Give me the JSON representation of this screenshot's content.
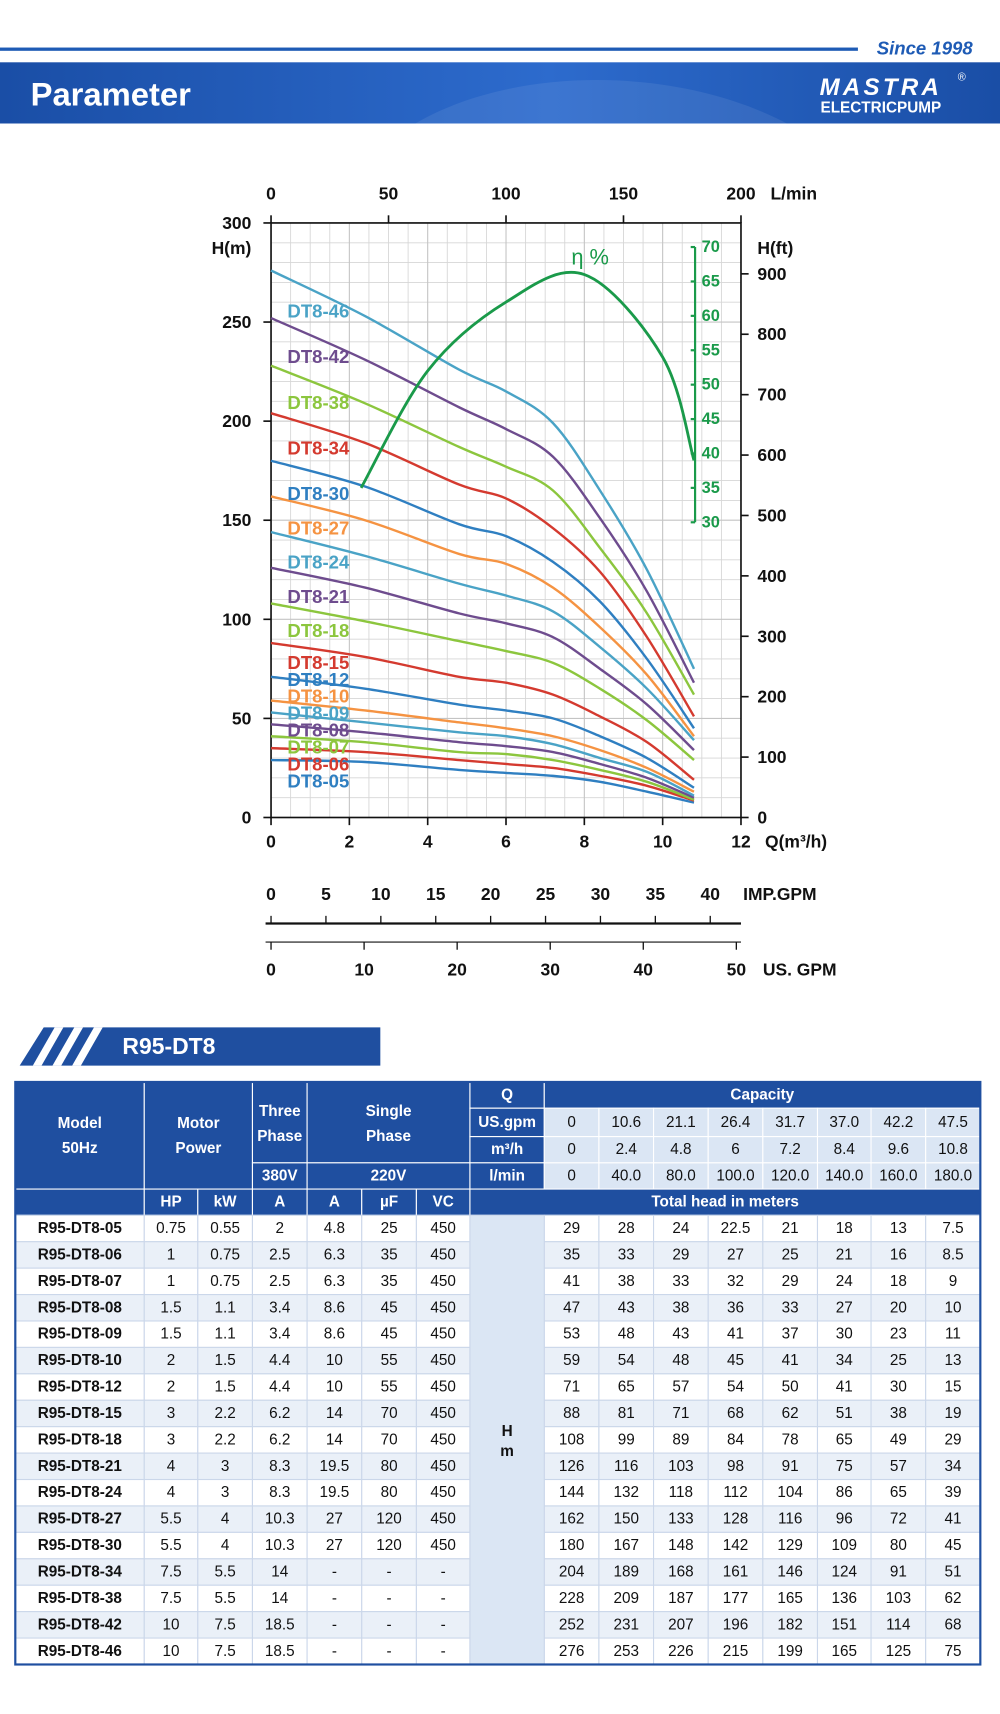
{
  "header": {
    "since": "Since 1998",
    "title": "Parameter",
    "logo": "MASTRA",
    "logo_sub": "ELECTRICPUMP",
    "reg": "®"
  },
  "chart_data": {
    "type": "line",
    "x_label": "Q(m³/h)",
    "y_label": "H(m)",
    "x": [
      0,
      2.4,
      4.8,
      6,
      7.2,
      8.4,
      9.6,
      10.8
    ],
    "xlim": [
      0,
      12
    ],
    "xticks": [
      0,
      2,
      4,
      6,
      8,
      10,
      12
    ],
    "ylim": [
      0,
      300
    ],
    "yticks": [
      0,
      50,
      100,
      150,
      200,
      250,
      300
    ],
    "grid": true,
    "series": [
      {
        "name": "DT8-05",
        "color": "#2f7fc1",
        "values": [
          29,
          28,
          24,
          22.5,
          21,
          18,
          13,
          7.5
        ]
      },
      {
        "name": "DT8-06",
        "color": "#d43a2f",
        "values": [
          35,
          33,
          29,
          27,
          25,
          21,
          16,
          8.5
        ]
      },
      {
        "name": "DT8-07",
        "color": "#8cc63e",
        "values": [
          41,
          38,
          33,
          32,
          29,
          24,
          18,
          9
        ]
      },
      {
        "name": "DT8-08",
        "color": "#6e4c8e",
        "values": [
          47,
          43,
          38,
          36,
          33,
          27,
          20,
          10
        ]
      },
      {
        "name": "DT8-09",
        "color": "#4aa3c6",
        "values": [
          53,
          48,
          43,
          41,
          37,
          30,
          23,
          11
        ]
      },
      {
        "name": "DT8-10",
        "color": "#f59342",
        "values": [
          59,
          54,
          48,
          45,
          41,
          34,
          25,
          13
        ]
      },
      {
        "name": "DT8-12",
        "color": "#2f7fc1",
        "values": [
          71,
          65,
          57,
          54,
          50,
          41,
          30,
          15
        ]
      },
      {
        "name": "DT8-15",
        "color": "#d43a2f",
        "values": [
          88,
          81,
          71,
          68,
          62,
          51,
          38,
          19
        ]
      },
      {
        "name": "DT8-18",
        "color": "#8cc63e",
        "values": [
          108,
          99,
          89,
          84,
          78,
          65,
          49,
          29
        ]
      },
      {
        "name": "DT8-21",
        "color": "#6e4c8e",
        "values": [
          126,
          116,
          103,
          98,
          91,
          75,
          57,
          34
        ]
      },
      {
        "name": "DT8-24",
        "color": "#4aa3c6",
        "values": [
          144,
          132,
          118,
          112,
          104,
          86,
          65,
          39
        ]
      },
      {
        "name": "DT8-27",
        "color": "#f59342",
        "values": [
          162,
          150,
          133,
          128,
          116,
          96,
          72,
          41
        ]
      },
      {
        "name": "DT8-30",
        "color": "#2f7fc1",
        "values": [
          180,
          167,
          148,
          142,
          129,
          109,
          80,
          45
        ]
      },
      {
        "name": "DT8-34",
        "color": "#d43a2f",
        "values": [
          204,
          189,
          168,
          161,
          146,
          124,
          91,
          51
        ]
      },
      {
        "name": "DT8-38",
        "color": "#8cc63e",
        "values": [
          228,
          209,
          187,
          177,
          165,
          136,
          103,
          62
        ]
      },
      {
        "name": "DT8-42",
        "color": "#6e4c8e",
        "values": [
          252,
          231,
          207,
          196,
          182,
          151,
          114,
          68
        ]
      },
      {
        "name": "DT8-46",
        "color": "#4aa3c6",
        "values": [
          276,
          253,
          226,
          215,
          199,
          165,
          125,
          75
        ]
      }
    ],
    "efficiency": {
      "name": "η %",
      "color": "#1a9a4a",
      "axis": "y2",
      "x": [
        2.3,
        4,
        6,
        8,
        10,
        10.8
      ],
      "values": [
        35,
        52,
        62,
        66,
        54,
        39
      ]
    },
    "y2lim": [
      -12.9,
      73.5
    ],
    "y2ticks": [
      30,
      35,
      40,
      45,
      50,
      55,
      60,
      65,
      70
    ],
    "top_axis": {
      "label": "L/min",
      "lim": [
        0,
        200
      ],
      "ticks": [
        0,
        50,
        100,
        150,
        200
      ]
    },
    "right_axis": {
      "label": "H(ft)",
      "lim": [
        0,
        984.25
      ],
      "ticks": [
        0,
        100,
        200,
        300,
        400,
        500,
        600,
        700,
        800,
        900
      ]
    },
    "imp_axis": {
      "label": "IMP.GPM",
      "lim": [
        0,
        42.8
      ],
      "ticks": [
        0,
        5,
        10,
        15,
        20,
        25,
        30,
        35,
        40
      ]
    },
    "us_axis": {
      "label": "US. GPM",
      "lim": [
        0,
        50.5
      ],
      "ticks": [
        0,
        10,
        20,
        30,
        40,
        50
      ]
    }
  },
  "table": {
    "title": "R95-DT8",
    "head": {
      "model": [
        "Model",
        "50Hz"
      ],
      "motor": [
        "Motor",
        "Power"
      ],
      "three": [
        "Three",
        "Phase"
      ],
      "v380": "380V",
      "single": [
        "Single",
        "Phase"
      ],
      "v220": "220V",
      "q": "Q",
      "capacity": "Capacity",
      "units": [
        "US.gpm",
        "m³/h",
        "l/min"
      ],
      "q_values": [
        [
          "0",
          "10.6",
          "21.1",
          "26.4",
          "31.7",
          "37.0",
          "42.2",
          "47.5"
        ],
        [
          "0",
          "2.4",
          "4.8",
          "6",
          "7.2",
          "8.4",
          "9.6",
          "10.8"
        ],
        [
          "0",
          "40.0",
          "80.0",
          "100.0",
          "120.0",
          "140.0",
          "160.0",
          "180.0"
        ]
      ],
      "sub": [
        "HP",
        "kW",
        "A",
        "A",
        "µF",
        "VC"
      ],
      "total": "Total head in meters",
      "h": [
        "H",
        "m"
      ]
    },
    "rows": [
      [
        "R95-DT8-05",
        "0.75",
        "0.55",
        "2",
        "4.8",
        "25",
        "450",
        "29",
        "28",
        "24",
        "22.5",
        "21",
        "18",
        "13",
        "7.5"
      ],
      [
        "R95-DT8-06",
        "1",
        "0.75",
        "2.5",
        "6.3",
        "35",
        "450",
        "35",
        "33",
        "29",
        "27",
        "25",
        "21",
        "16",
        "8.5"
      ],
      [
        "R95-DT8-07",
        "1",
        "0.75",
        "2.5",
        "6.3",
        "35",
        "450",
        "41",
        "38",
        "33",
        "32",
        "29",
        "24",
        "18",
        "9"
      ],
      [
        "R95-DT8-08",
        "1.5",
        "1.1",
        "3.4",
        "8.6",
        "45",
        "450",
        "47",
        "43",
        "38",
        "36",
        "33",
        "27",
        "20",
        "10"
      ],
      [
        "R95-DT8-09",
        "1.5",
        "1.1",
        "3.4",
        "8.6",
        "45",
        "450",
        "53",
        "48",
        "43",
        "41",
        "37",
        "30",
        "23",
        "11"
      ],
      [
        "R95-DT8-10",
        "2",
        "1.5",
        "4.4",
        "10",
        "55",
        "450",
        "59",
        "54",
        "48",
        "45",
        "41",
        "34",
        "25",
        "13"
      ],
      [
        "R95-DT8-12",
        "2",
        "1.5",
        "4.4",
        "10",
        "55",
        "450",
        "71",
        "65",
        "57",
        "54",
        "50",
        "41",
        "30",
        "15"
      ],
      [
        "R95-DT8-15",
        "3",
        "2.2",
        "6.2",
        "14",
        "70",
        "450",
        "88",
        "81",
        "71",
        "68",
        "62",
        "51",
        "38",
        "19"
      ],
      [
        "R95-DT8-18",
        "3",
        "2.2",
        "6.2",
        "14",
        "70",
        "450",
        "108",
        "99",
        "89",
        "84",
        "78",
        "65",
        "49",
        "29"
      ],
      [
        "R95-DT8-21",
        "4",
        "3",
        "8.3",
        "19.5",
        "80",
        "450",
        "126",
        "116",
        "103",
        "98",
        "91",
        "75",
        "57",
        "34"
      ],
      [
        "R95-DT8-24",
        "4",
        "3",
        "8.3",
        "19.5",
        "80",
        "450",
        "144",
        "132",
        "118",
        "112",
        "104",
        "86",
        "65",
        "39"
      ],
      [
        "R95-DT8-27",
        "5.5",
        "4",
        "10.3",
        "27",
        "120",
        "450",
        "162",
        "150",
        "133",
        "128",
        "116",
        "96",
        "72",
        "41"
      ],
      [
        "R95-DT8-30",
        "5.5",
        "4",
        "10.3",
        "27",
        "120",
        "450",
        "180",
        "167",
        "148",
        "142",
        "129",
        "109",
        "80",
        "45"
      ],
      [
        "R95-DT8-34",
        "7.5",
        "5.5",
        "14",
        "-",
        "-",
        "-",
        "204",
        "189",
        "168",
        "161",
        "146",
        "124",
        "91",
        "51"
      ],
      [
        "R95-DT8-38",
        "7.5",
        "5.5",
        "14",
        "-",
        "-",
        "-",
        "228",
        "209",
        "187",
        "177",
        "165",
        "136",
        "103",
        "62"
      ],
      [
        "R95-DT8-42",
        "10",
        "7.5",
        "18.5",
        "-",
        "-",
        "-",
        "252",
        "231",
        "207",
        "196",
        "182",
        "151",
        "114",
        "68"
      ],
      [
        "R95-DT8-46",
        "10",
        "7.5",
        "18.5",
        "-",
        "-",
        "-",
        "276",
        "253",
        "226",
        "215",
        "199",
        "165",
        "125",
        "75"
      ]
    ]
  }
}
